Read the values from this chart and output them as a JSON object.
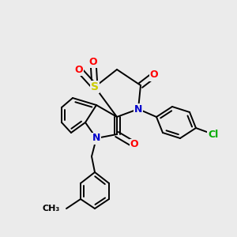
{
  "background_color": "#ebebeb",
  "atom_colors": {
    "C": "#000000",
    "N": "#0000cc",
    "O": "#ff0000",
    "S": "#cccc00",
    "Cl": "#00aa00",
    "H": "#000000"
  },
  "bond_color": "#000000",
  "bond_width": 1.4,
  "figsize": [
    3.0,
    3.0
  ],
  "dpi": 100
}
